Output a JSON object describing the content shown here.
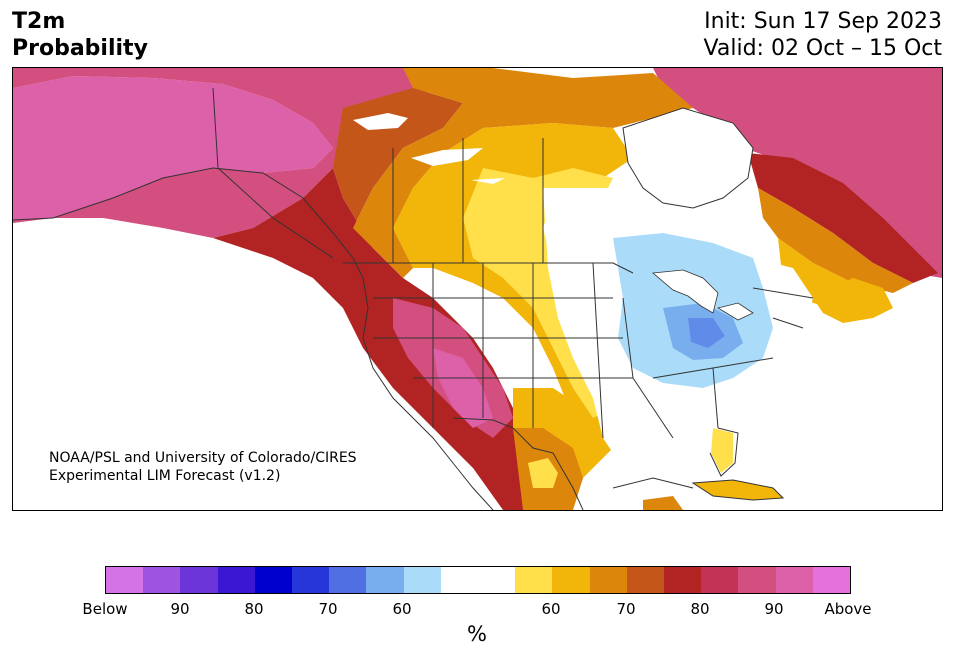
{
  "title": {
    "line1": "T2m",
    "line2": "Probability"
  },
  "header_right": {
    "init": "Init: Sun 17 Sep 2023",
    "valid": "Valid: 02 Oct – 15 Oct"
  },
  "credit": {
    "line1": "NOAA/PSL and University of Colorado/CIRES",
    "line2": "Experimental LIM Forecast (v1.2)"
  },
  "colorbar": {
    "unit": "%",
    "colors": [
      "#d473e6",
      "#9e54e0",
      "#6b35d9",
      "#3a18d3",
      "#0000cc",
      "#2636d8",
      "#4f6fe3",
      "#79aeee",
      "#aadcfa",
      "#ffffff",
      "#ffe04a",
      "#f2b50a",
      "#dd860c",
      "#c4561a",
      "#b22424",
      "#c23356",
      "#d34f7f",
      "#dd61a8",
      "#e572dc"
    ],
    "labels": [
      "Below",
      "90",
      "80",
      "70",
      "60",
      "60",
      "70",
      "80",
      "90",
      "Above"
    ]
  },
  "map_colors": {
    "far_above": "#dd61a8",
    "above_90": "#d34f7f",
    "above_80": "#b22424",
    "above_70": "#c4561a",
    "above_65": "#dd860c",
    "above_60": "#f2b50a",
    "above_55": "#ffe04a",
    "neutral": "#ffffff",
    "below_60": "#aadcfa",
    "below_65": "#79aeee",
    "below_70": "#4f6fe3",
    "border": "#333333",
    "lakes": "#ffffff"
  }
}
